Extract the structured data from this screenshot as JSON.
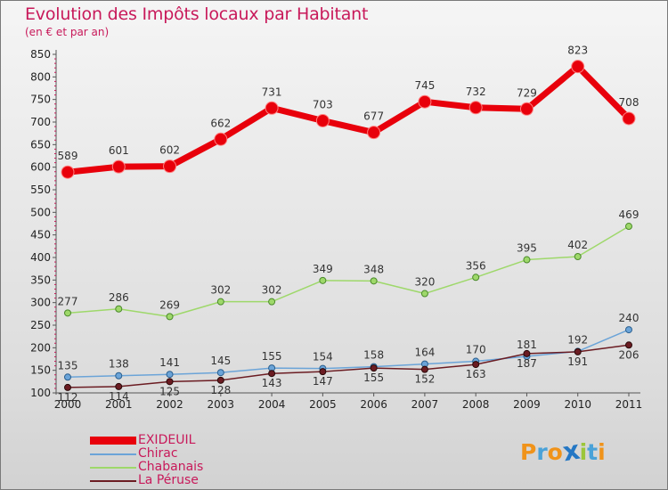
{
  "header": {
    "title": "Evolution des Impôts locaux par Habitant",
    "subtitle": "(en € et par an)"
  },
  "chart_data": {
    "type": "line",
    "title": "Evolution des Impôts locaux par Habitant",
    "subtitle": "(en € et par an)",
    "x": [
      "2000",
      "2001",
      "2002",
      "2003",
      "2004",
      "2005",
      "2006",
      "2007",
      "2008",
      "2009",
      "2010",
      "2011"
    ],
    "ylim": [
      100,
      850
    ],
    "yticks": [
      100,
      150,
      200,
      250,
      300,
      350,
      400,
      450,
      500,
      550,
      600,
      650,
      700,
      750,
      800,
      850
    ],
    "grid": false,
    "legend_position": "bottom-left",
    "series": [
      {
        "name": "EXIDEUIL",
        "color": "#e8000b",
        "values": [
          589,
          601,
          602,
          662,
          731,
          703,
          677,
          745,
          732,
          729,
          823,
          708
        ],
        "labels": [
          "589",
          "601",
          "602",
          "662",
          "731",
          "703",
          "677",
          "745",
          "732",
          "729",
          "823",
          "708"
        ]
      },
      {
        "name": "Chirac",
        "color": "#6ba4d8",
        "values": [
          135,
          138,
          141,
          145,
          155,
          154,
          158,
          164,
          170,
          181,
          192,
          240
        ],
        "labels": [
          "135",
          "138",
          "141",
          "145",
          "155",
          "154",
          "158",
          "164",
          "170",
          "181",
          "192",
          "240"
        ]
      },
      {
        "name": "Chabanais",
        "color": "#9ed86a",
        "values": [
          277,
          286,
          269,
          302,
          302,
          349,
          348,
          320,
          356,
          395,
          402,
          469
        ],
        "labels": [
          "277",
          "286",
          "269",
          "302",
          "302",
          "349",
          "348",
          "320",
          "356",
          "395",
          "402",
          "469"
        ]
      },
      {
        "name": "La Péruse",
        "color": "#6b1c22",
        "values": [
          112,
          114,
          125,
          128,
          143,
          147,
          155,
          152,
          163,
          187,
          191,
          206
        ],
        "labels": [
          "112",
          "114",
          "125",
          "128",
          "143",
          "147",
          "155",
          "152",
          "163",
          "187",
          "191",
          "206"
        ]
      }
    ]
  },
  "logo": {
    "letters": [
      "P",
      "r",
      "o",
      "x",
      "i",
      "t",
      "i"
    ],
    "colors": [
      "#f0931a",
      "#4aa2d8",
      "#f0931a",
      "#2477c4",
      "#9cc63a",
      "#4aa2d8",
      "#f0931a"
    ]
  }
}
